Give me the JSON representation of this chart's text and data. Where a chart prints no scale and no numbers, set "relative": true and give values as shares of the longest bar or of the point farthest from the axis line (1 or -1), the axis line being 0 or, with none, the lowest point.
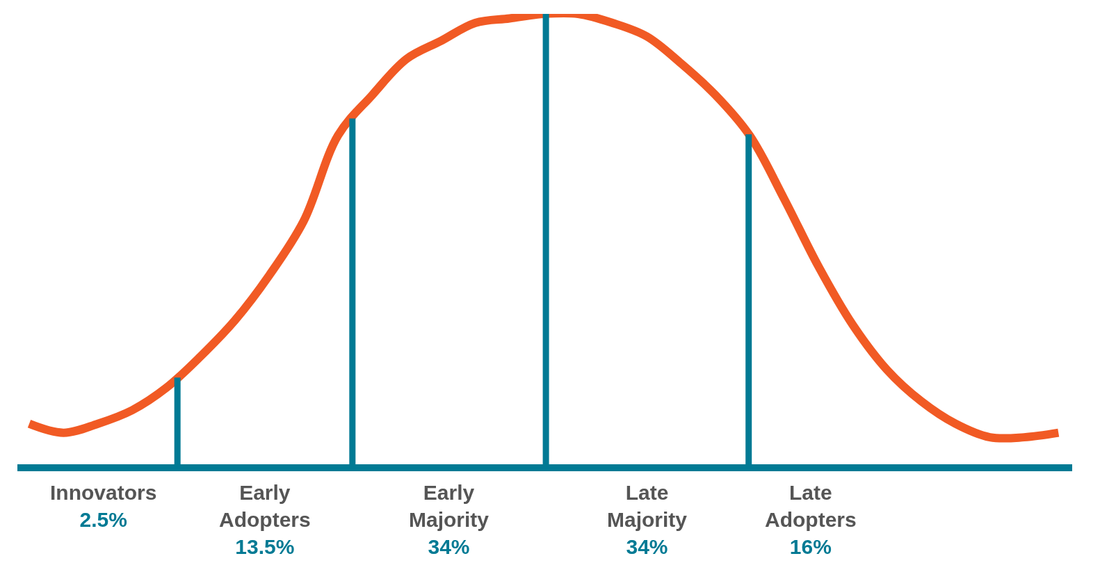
{
  "chart_data": {
    "type": "line",
    "relative": true,
    "categories": [
      null,
      null,
      null,
      null,
      null,
      null,
      null,
      null,
      null,
      null,
      null,
      null,
      null,
      null,
      null,
      null,
      null,
      null,
      null,
      null,
      null,
      null,
      null,
      null,
      null,
      null,
      null,
      null,
      null,
      null,
      null
    ],
    "series": [
      {
        "color": "#f15a24",
        "values": [
          0.09,
          0.07,
          0.09,
          0.12,
          0.17,
          0.24,
          0.32,
          0.42,
          0.54,
          0.73,
          0.82,
          0.9,
          0.94,
          0.98,
          0.99,
          1.0,
          1.0,
          0.98,
          0.95,
          0.89,
          0.82,
          0.73,
          0.59,
          0.44,
          0.31,
          0.21,
          0.14,
          0.09,
          0.06,
          0.06,
          0.07
        ]
      }
    ],
    "annotations": [
      "Innovators\n2.5%",
      "Early\nAdopters\n13.5%",
      "Early\nMajority\n34%",
      "Late\nMajority\n34%",
      "Late\nAdopters\n16%"
    ],
    "line_style": "solid"
  }
}
